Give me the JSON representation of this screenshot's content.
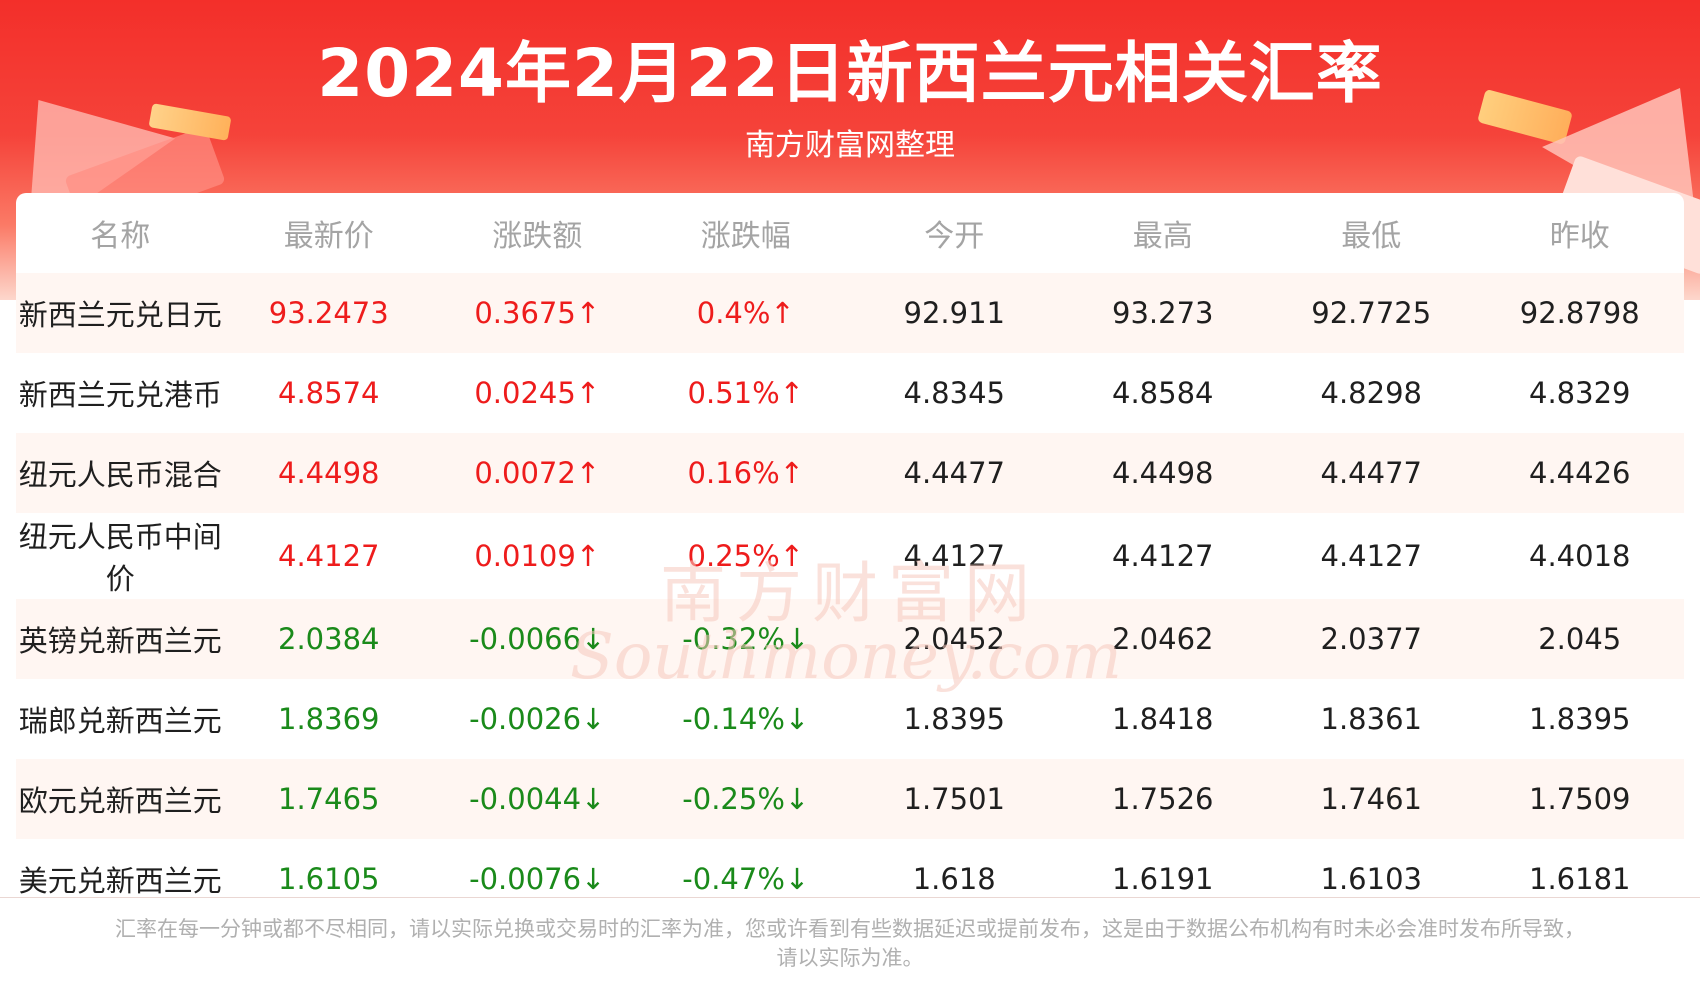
{
  "header": {
    "title": "2024年2月22日新西兰元相关汇率",
    "subtitle": "南方财富网整理"
  },
  "colors": {
    "up": "#ee1c1c",
    "down": "#1a8a1a",
    "header_red": "#f32f2a"
  },
  "table": {
    "columns": [
      "名称",
      "最新价",
      "涨跌额",
      "涨跌幅",
      "今开",
      "最高",
      "最低",
      "昨收"
    ],
    "rows": [
      {
        "name": "新西兰元兑日元",
        "latest": "93.2473",
        "change": "0.3675↑",
        "pct": "0.4%↑",
        "open": "92.911",
        "high": "93.273",
        "low": "92.7725",
        "prev": "92.8798",
        "trend": "up"
      },
      {
        "name": "新西兰元兑港币",
        "latest": "4.8574",
        "change": "0.0245↑",
        "pct": "0.51%↑",
        "open": "4.8345",
        "high": "4.8584",
        "low": "4.8298",
        "prev": "4.8329",
        "trend": "up"
      },
      {
        "name": "纽元人民币混合",
        "latest": "4.4498",
        "change": "0.0072↑",
        "pct": "0.16%↑",
        "open": "4.4477",
        "high": "4.4498",
        "low": "4.4477",
        "prev": "4.4426",
        "trend": "up"
      },
      {
        "name": "纽元人民币中间价",
        "latest": "4.4127",
        "change": "0.0109↑",
        "pct": "0.25%↑",
        "open": "4.4127",
        "high": "4.4127",
        "low": "4.4127",
        "prev": "4.4018",
        "trend": "up"
      },
      {
        "name": "英镑兑新西兰元",
        "latest": "2.0384",
        "change": "-0.0066↓",
        "pct": "-0.32%↓",
        "open": "2.0452",
        "high": "2.0462",
        "low": "2.0377",
        "prev": "2.045",
        "trend": "down"
      },
      {
        "name": "瑞郎兑新西兰元",
        "latest": "1.8369",
        "change": "-0.0026↓",
        "pct": "-0.14%↓",
        "open": "1.8395",
        "high": "1.8418",
        "low": "1.8361",
        "prev": "1.8395",
        "trend": "down"
      },
      {
        "name": "欧元兑新西兰元",
        "latest": "1.7465",
        "change": "-0.0044↓",
        "pct": "-0.25%↓",
        "open": "1.7501",
        "high": "1.7526",
        "low": "1.7461",
        "prev": "1.7509",
        "trend": "down"
      },
      {
        "name": "美元兑新西兰元",
        "latest": "1.6105",
        "change": "-0.0076↓",
        "pct": "-0.47%↓",
        "open": "1.618",
        "high": "1.6191",
        "low": "1.6103",
        "prev": "1.6181",
        "trend": "down"
      }
    ]
  },
  "watermark": {
    "cn": "南方财富网",
    "en": "Southmoney.com"
  },
  "footer": {
    "line1": "汇率在每一分钟或都不尽相同，请以实际兑换或交易时的汇率为准，您或许看到有些数据延迟或提前发布，这是由于数据公布机构有时未必会准时发布所导致，",
    "line2": "请以实际为准。"
  }
}
